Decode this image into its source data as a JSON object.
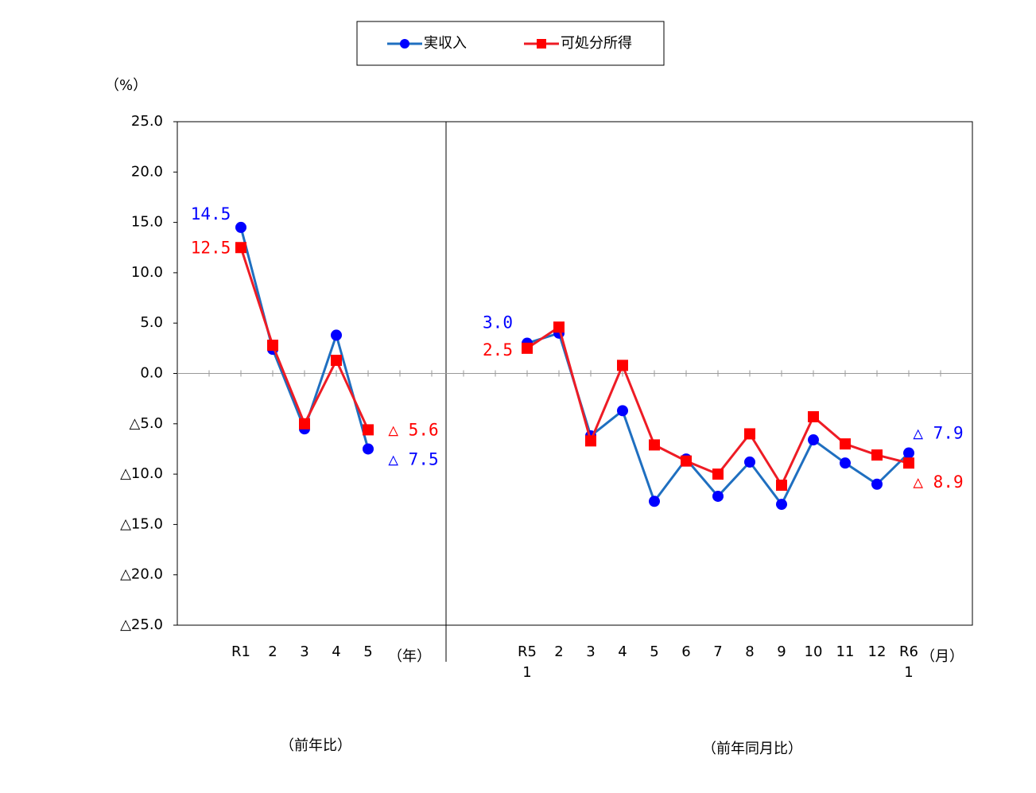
{
  "chart_data": {
    "type": "line",
    "y_unit": "（%）",
    "categories": [
      "R1",
      "2",
      "3",
      "4",
      "5",
      null,
      null,
      null,
      null,
      "R5\n1",
      "2",
      "3",
      "4",
      "5",
      "6",
      "7",
      "8",
      "9",
      "10",
      "11",
      "12",
      "R6\n1"
    ],
    "x_units": [
      "（年）",
      "（月）"
    ],
    "panel_labels": [
      "（前年比）",
      "（前年同月比）"
    ],
    "series": [
      {
        "name": "実収入",
        "color": "#0000ff",
        "line_color": "#1f6fc0",
        "marker": "circle",
        "values": [
          14.5,
          2.4,
          -5.5,
          3.8,
          -7.5,
          null,
          null,
          null,
          null,
          3.0,
          4.0,
          -6.2,
          -3.7,
          -12.7,
          -8.5,
          -12.2,
          -8.8,
          -13.0,
          -6.6,
          -8.9,
          -11.0,
          -7.9
        ],
        "value_labels": [
          "14.5",
          null,
          null,
          null,
          "△ 7.5",
          null,
          null,
          null,
          null,
          "3.0",
          null,
          null,
          null,
          null,
          null,
          null,
          null,
          null,
          null,
          null,
          null,
          "△ 7.9"
        ]
      },
      {
        "name": "可処分所得",
        "color": "#ff0000",
        "line_color": "#ee1c25",
        "marker": "square",
        "values": [
          12.5,
          2.8,
          -5.0,
          1.3,
          -5.6,
          null,
          null,
          null,
          null,
          2.5,
          4.6,
          -6.7,
          0.8,
          -7.1,
          -8.7,
          -10.0,
          -6.0,
          -11.1,
          -4.3,
          -7.0,
          -8.1,
          -8.9
        ],
        "value_labels": [
          "12.5",
          null,
          null,
          null,
          "△ 5.6",
          null,
          null,
          null,
          null,
          "2.5",
          null,
          null,
          null,
          null,
          null,
          null,
          null,
          null,
          null,
          null,
          null,
          "△ 8.9"
        ]
      }
    ],
    "ylim": [
      -25,
      25
    ],
    "yticks": [
      {
        "value": 25,
        "label": "25.0"
      },
      {
        "value": 20,
        "label": "20.0"
      },
      {
        "value": 15,
        "label": "15.0"
      },
      {
        "value": 10,
        "label": "10.0"
      },
      {
        "value": 5,
        "label": "5.0"
      },
      {
        "value": 0,
        "label": "0.0"
      },
      {
        "value": -5,
        "label": "△5.0"
      },
      {
        "value": -10,
        "label": "△10.0"
      },
      {
        "value": -15,
        "label": "△15.0"
      },
      {
        "value": -20,
        "label": "△20.0"
      },
      {
        "value": -25,
        "label": "△25.0"
      }
    ],
    "grid": false
  }
}
